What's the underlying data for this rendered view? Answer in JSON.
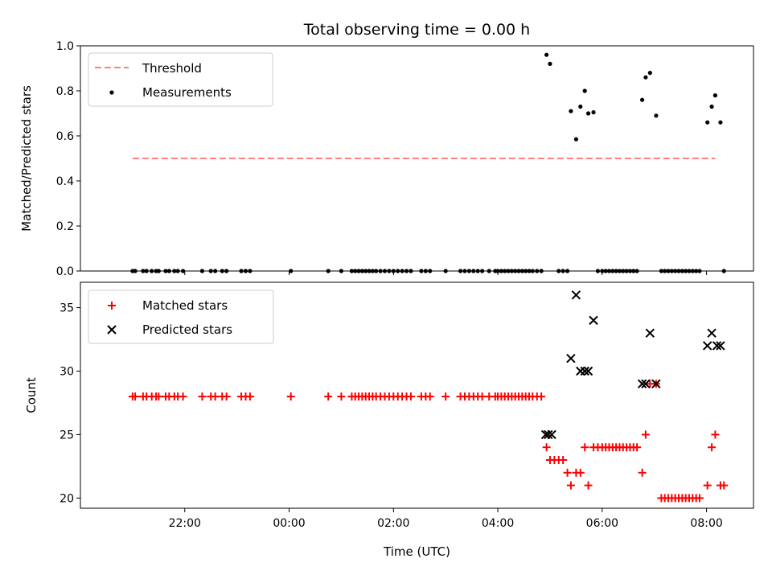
{
  "chart_data": {
    "title": "Total observing time = 0.00 h",
    "panels": [
      {
        "type": "scatter",
        "ylabel": "Matched/Predicted stars",
        "ylim": [
          0,
          1.0
        ],
        "yticks": [
          "0.0",
          "0.2",
          "0.4",
          "0.6",
          "0.8",
          "1.0"
        ],
        "legend_position": "top-left",
        "threshold": {
          "name": "Threshold",
          "value": 0.5,
          "x_start": "21:00",
          "x_end": "08:10",
          "color": "#ff8080"
        },
        "measurements": {
          "name": "Measurements",
          "color": "#000000",
          "points": [
            [
              "21:00",
              0
            ],
            [
              "21:03",
              0
            ],
            [
              "21:12",
              0
            ],
            [
              "21:16",
              0
            ],
            [
              "21:22",
              0
            ],
            [
              "21:27",
              0
            ],
            [
              "21:30",
              0
            ],
            [
              "21:38",
              0
            ],
            [
              "21:42",
              0
            ],
            [
              "21:48",
              0
            ],
            [
              "21:52",
              0
            ],
            [
              "21:58",
              0
            ],
            [
              "22:20",
              0
            ],
            [
              "22:30",
              0
            ],
            [
              "22:35",
              0
            ],
            [
              "22:43",
              0
            ],
            [
              "22:48",
              0
            ],
            [
              "23:05",
              0
            ],
            [
              "23:10",
              0
            ],
            [
              "23:15",
              0
            ],
            [
              "00:02",
              0
            ],
            [
              "00:45",
              0
            ],
            [
              "01:00",
              0
            ],
            [
              "01:12",
              0
            ],
            [
              "01:16",
              0
            ],
            [
              "01:20",
              0
            ],
            [
              "01:24",
              0
            ],
            [
              "01:28",
              0
            ],
            [
              "01:32",
              0
            ],
            [
              "01:36",
              0
            ],
            [
              "01:40",
              0
            ],
            [
              "01:45",
              0
            ],
            [
              "01:50",
              0
            ],
            [
              "01:55",
              0
            ],
            [
              "02:00",
              0
            ],
            [
              "02:05",
              0
            ],
            [
              "02:10",
              0
            ],
            [
              "02:15",
              0
            ],
            [
              "02:20",
              0
            ],
            [
              "02:32",
              0
            ],
            [
              "02:37",
              0
            ],
            [
              "02:42",
              0
            ],
            [
              "03:00",
              0
            ],
            [
              "03:17",
              0
            ],
            [
              "03:22",
              0
            ],
            [
              "03:27",
              0
            ],
            [
              "03:32",
              0
            ],
            [
              "03:37",
              0
            ],
            [
              "03:42",
              0
            ],
            [
              "03:50",
              0
            ],
            [
              "03:57",
              0
            ],
            [
              "04:00",
              0
            ],
            [
              "04:04",
              0
            ],
            [
              "04:08",
              0
            ],
            [
              "04:12",
              0
            ],
            [
              "04:16",
              0
            ],
            [
              "04:20",
              0
            ],
            [
              "04:24",
              0
            ],
            [
              "04:28",
              0
            ],
            [
              "04:32",
              0
            ],
            [
              "04:36",
              0
            ],
            [
              "04:40",
              0
            ],
            [
              "04:45",
              0
            ],
            [
              "04:50",
              0
            ],
            [
              "04:56",
              0.96
            ],
            [
              "05:00",
              0.92
            ],
            [
              "05:10",
              0
            ],
            [
              "05:15",
              0
            ],
            [
              "05:20",
              0
            ],
            [
              "05:24",
              0.71
            ],
            [
              "05:30",
              0.585
            ],
            [
              "05:35",
              0.73
            ],
            [
              "05:40",
              0.8
            ],
            [
              "05:44",
              0.7
            ],
            [
              "05:50",
              0.705
            ],
            [
              "05:55",
              0
            ],
            [
              "06:00",
              0
            ],
            [
              "06:04",
              0
            ],
            [
              "06:08",
              0
            ],
            [
              "06:12",
              0
            ],
            [
              "06:16",
              0
            ],
            [
              "06:20",
              0
            ],
            [
              "06:24",
              0
            ],
            [
              "06:28",
              0
            ],
            [
              "06:32",
              0
            ],
            [
              "06:36",
              0
            ],
            [
              "06:40",
              0
            ],
            [
              "06:46",
              0.76
            ],
            [
              "06:50",
              0.86
            ],
            [
              "06:55",
              0.88
            ],
            [
              "07:02",
              0.69
            ],
            [
              "07:08",
              0
            ],
            [
              "07:12",
              0
            ],
            [
              "07:16",
              0
            ],
            [
              "07:20",
              0
            ],
            [
              "07:24",
              0
            ],
            [
              "07:28",
              0
            ],
            [
              "07:32",
              0
            ],
            [
              "07:36",
              0
            ],
            [
              "07:40",
              0
            ],
            [
              "07:44",
              0
            ],
            [
              "07:48",
              0
            ],
            [
              "07:52",
              0
            ],
            [
              "08:01",
              0.66
            ],
            [
              "08:06",
              0.73
            ],
            [
              "08:10",
              0.78
            ],
            [
              "08:16",
              0.66
            ],
            [
              "08:20",
              0
            ]
          ]
        }
      },
      {
        "type": "scatter",
        "ylabel": "Count",
        "ylim": [
          19.2,
          37
        ],
        "yticks": [
          "20",
          "25",
          "30",
          "35"
        ],
        "xlabel": "Time (UTC)",
        "xticks": [
          "22:00",
          "00:00",
          "02:00",
          "04:00",
          "06:00",
          "08:00"
        ],
        "legend_position": "top-left",
        "matched": {
          "name": "Matched stars",
          "color": "#ff0000",
          "points": [
            [
              "21:00",
              28
            ],
            [
              "21:03",
              28
            ],
            [
              "21:12",
              28
            ],
            [
              "21:16",
              28
            ],
            [
              "21:22",
              28
            ],
            [
              "21:27",
              28
            ],
            [
              "21:30",
              28
            ],
            [
              "21:38",
              28
            ],
            [
              "21:42",
              28
            ],
            [
              "21:48",
              28
            ],
            [
              "21:52",
              28
            ],
            [
              "21:58",
              28
            ],
            [
              "22:20",
              28
            ],
            [
              "22:30",
              28
            ],
            [
              "22:35",
              28
            ],
            [
              "22:43",
              28
            ],
            [
              "22:48",
              28
            ],
            [
              "23:05",
              28
            ],
            [
              "23:10",
              28
            ],
            [
              "23:15",
              28
            ],
            [
              "00:02",
              28
            ],
            [
              "00:45",
              28
            ],
            [
              "01:00",
              28
            ],
            [
              "01:12",
              28
            ],
            [
              "01:16",
              28
            ],
            [
              "01:20",
              28
            ],
            [
              "01:24",
              28
            ],
            [
              "01:28",
              28
            ],
            [
              "01:32",
              28
            ],
            [
              "01:36",
              28
            ],
            [
              "01:40",
              28
            ],
            [
              "01:45",
              28
            ],
            [
              "01:50",
              28
            ],
            [
              "01:55",
              28
            ],
            [
              "02:00",
              28
            ],
            [
              "02:05",
              28
            ],
            [
              "02:10",
              28
            ],
            [
              "02:15",
              28
            ],
            [
              "02:20",
              28
            ],
            [
              "02:32",
              28
            ],
            [
              "02:37",
              28
            ],
            [
              "02:42",
              28
            ],
            [
              "03:00",
              28
            ],
            [
              "03:17",
              28
            ],
            [
              "03:22",
              28
            ],
            [
              "03:27",
              28
            ],
            [
              "03:32",
              28
            ],
            [
              "03:37",
              28
            ],
            [
              "03:42",
              28
            ],
            [
              "03:50",
              28
            ],
            [
              "03:57",
              28
            ],
            [
              "04:00",
              28
            ],
            [
              "04:04",
              28
            ],
            [
              "04:08",
              28
            ],
            [
              "04:12",
              28
            ],
            [
              "04:16",
              28
            ],
            [
              "04:20",
              28
            ],
            [
              "04:24",
              28
            ],
            [
              "04:28",
              28
            ],
            [
              "04:32",
              28
            ],
            [
              "04:36",
              28
            ],
            [
              "04:40",
              28
            ],
            [
              "04:45",
              28
            ],
            [
              "04:50",
              28
            ],
            [
              "04:56",
              24
            ],
            [
              "05:00",
              23
            ],
            [
              "05:05",
              23
            ],
            [
              "05:10",
              23
            ],
            [
              "05:15",
              23
            ],
            [
              "05:20",
              22
            ],
            [
              "05:24",
              21
            ],
            [
              "05:30",
              22
            ],
            [
              "05:35",
              22
            ],
            [
              "05:40",
              24
            ],
            [
              "05:44",
              21
            ],
            [
              "05:50",
              24
            ],
            [
              "05:55",
              24
            ],
            [
              "06:00",
              24
            ],
            [
              "06:04",
              24
            ],
            [
              "06:08",
              24
            ],
            [
              "06:12",
              24
            ],
            [
              "06:16",
              24
            ],
            [
              "06:20",
              24
            ],
            [
              "06:24",
              24
            ],
            [
              "06:28",
              24
            ],
            [
              "06:32",
              24
            ],
            [
              "06:36",
              24
            ],
            [
              "06:40",
              24
            ],
            [
              "06:46",
              22
            ],
            [
              "06:50",
              25
            ],
            [
              "06:55",
              29
            ],
            [
              "07:02",
              29
            ],
            [
              "07:08",
              20
            ],
            [
              "07:12",
              20
            ],
            [
              "07:16",
              20
            ],
            [
              "07:20",
              20
            ],
            [
              "07:24",
              20
            ],
            [
              "07:28",
              20
            ],
            [
              "07:32",
              20
            ],
            [
              "07:36",
              20
            ],
            [
              "07:40",
              20
            ],
            [
              "07:44",
              20
            ],
            [
              "07:48",
              20
            ],
            [
              "07:52",
              20
            ],
            [
              "08:01",
              21
            ],
            [
              "08:06",
              24
            ],
            [
              "08:10",
              25
            ],
            [
              "08:16",
              21
            ],
            [
              "08:20",
              21
            ]
          ]
        },
        "predicted": {
          "name": "Predicted stars",
          "color": "#000000",
          "points": [
            [
              "04:55",
              25
            ],
            [
              "04:58",
              25
            ],
            [
              "05:02",
              25
            ],
            [
              "05:24",
              31
            ],
            [
              "05:30",
              36
            ],
            [
              "05:35",
              30
            ],
            [
              "05:40",
              30
            ],
            [
              "05:44",
              30
            ],
            [
              "05:50",
              34
            ],
            [
              "06:46",
              29
            ],
            [
              "06:50",
              29
            ],
            [
              "06:55",
              33
            ],
            [
              "07:02",
              29
            ],
            [
              "08:01",
              32
            ],
            [
              "08:06",
              33
            ],
            [
              "08:12",
              32
            ],
            [
              "08:16",
              32
            ]
          ]
        }
      }
    ]
  }
}
